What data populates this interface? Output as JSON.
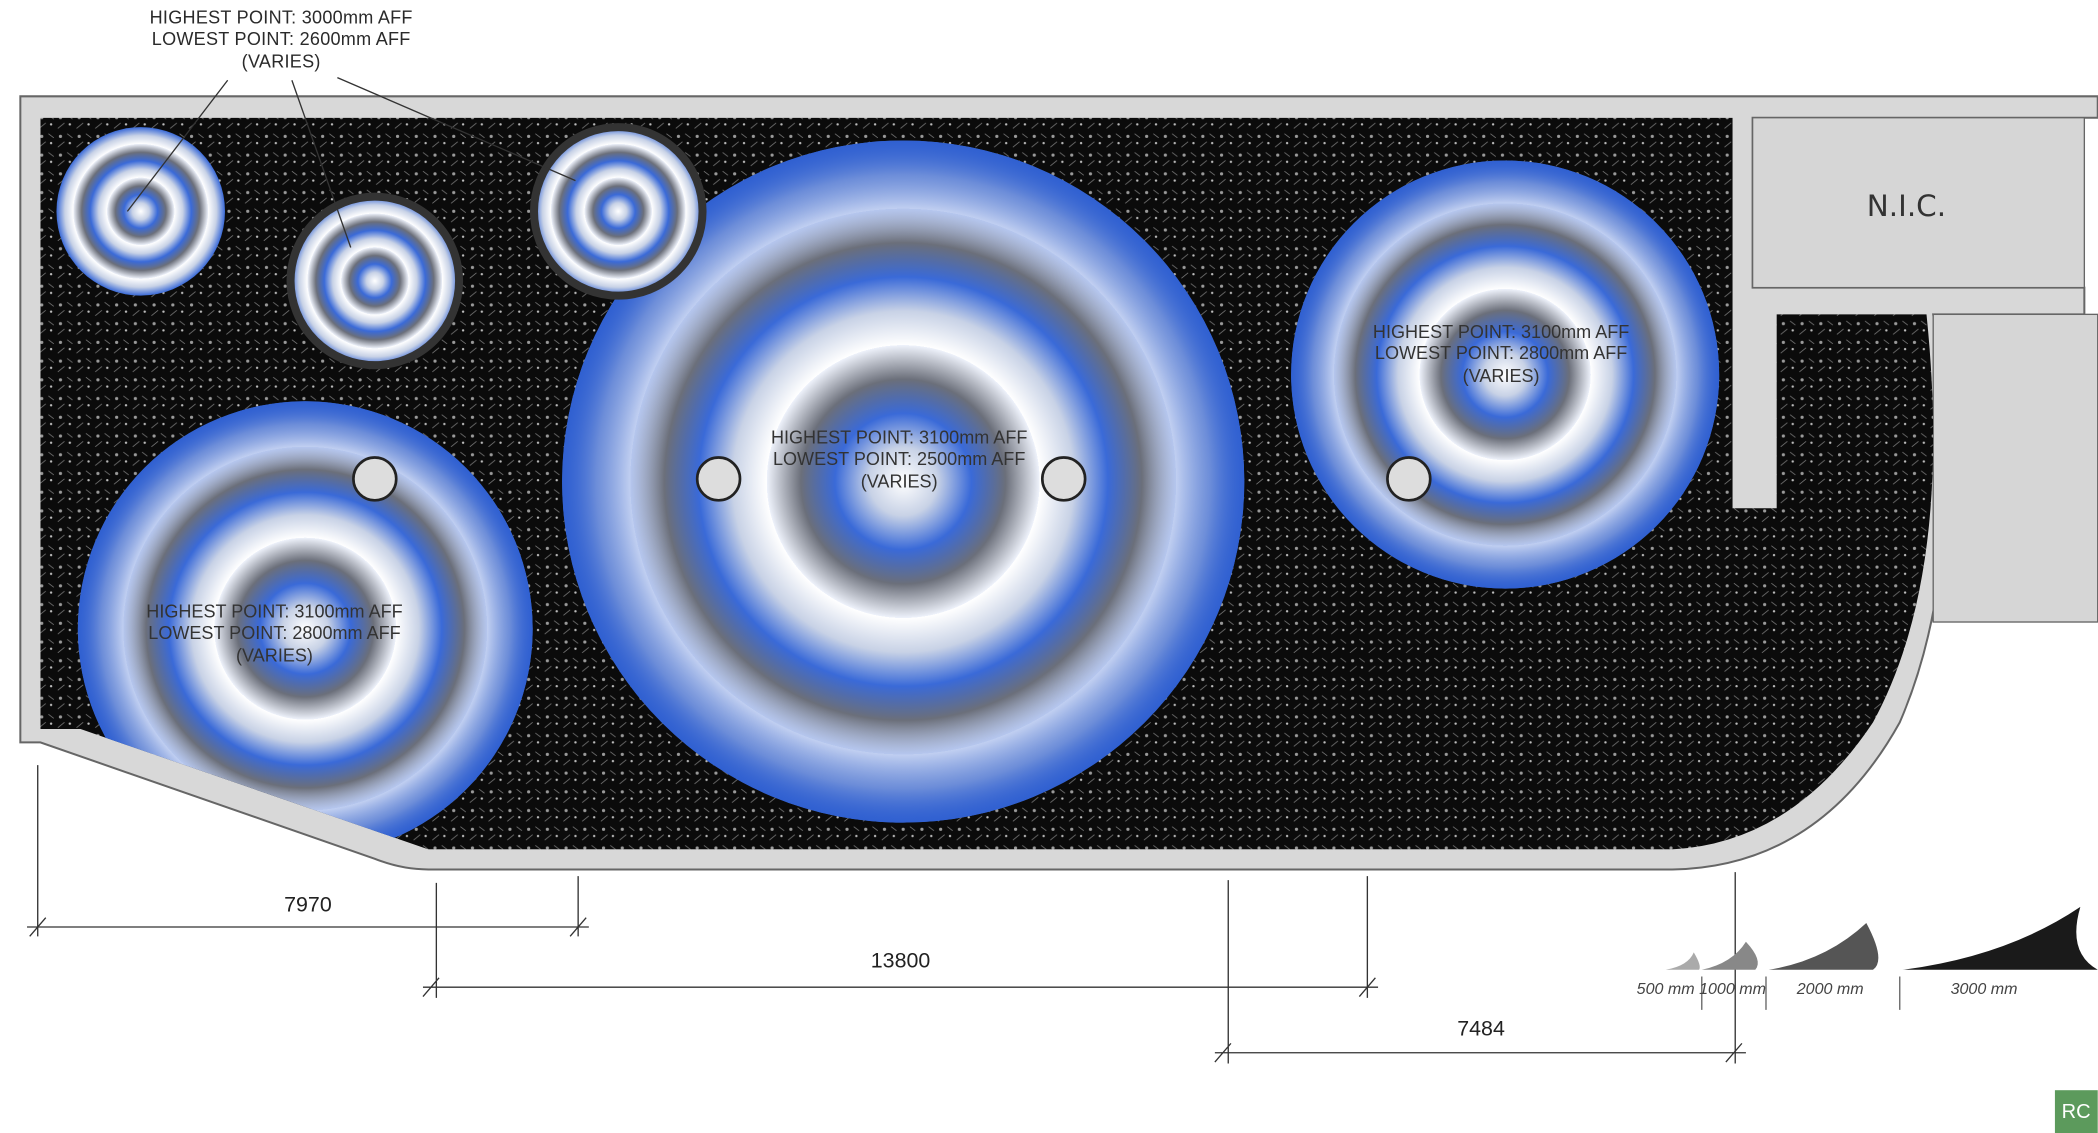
{
  "annotations": [
    {
      "lines": [
        "HIGHEST POINT: 3000mm AFF",
        "LOWEST POINT: 2600mm AFF",
        "(VARIES)"
      ]
    },
    {
      "lines": [
        "HIGHEST POINT: 3100mm AFF",
        "LOWEST POINT: 2500mm AFF",
        "(VARIES)"
      ]
    },
    {
      "lines": [
        "HIGHEST POINT: 3100mm AFF",
        "LOWEST POINT: 2800mm AFF",
        "(VARIES)"
      ]
    },
    {
      "lines": [
        "HIGHEST POINT: 3100mm AFF",
        "LOWEST POINT: 2800mm AFF",
        "(VARIES)"
      ]
    }
  ],
  "room_label": "N.I.C.",
  "dimensions": [
    7970,
    13800,
    7484
  ],
  "scale_bar": [
    "500 mm",
    "1000 mm",
    "2000 mm",
    "3000 mm"
  ],
  "badge": "RC"
}
